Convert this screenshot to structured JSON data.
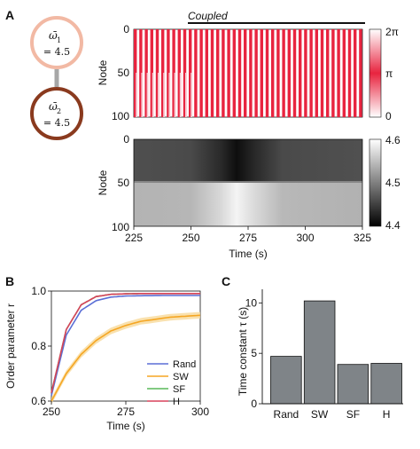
{
  "panels": {
    "a": "A",
    "b": "B",
    "c": "C"
  },
  "diagram": {
    "node1": {
      "symbol": "ω̄",
      "subscript": "1",
      "value": "= 4.5",
      "color": "#f2b9a4"
    },
    "node2": {
      "symbol": "ω̄",
      "subscript": "2",
      "value": "= 4.5",
      "color": "#8a3a1e"
    },
    "edge_color": "#a7a7a7"
  },
  "heatmap_top": {
    "annotation": "Coupled",
    "ylabel": "Node",
    "yticks": [
      "0",
      "50",
      "100"
    ],
    "colorbar_ticks": [
      "2π",
      "π",
      "0"
    ],
    "colors": {
      "high": "#e8243f",
      "low": "#ffffff"
    }
  },
  "heatmap_bottom": {
    "ylabel": "Node",
    "yticks": [
      "0",
      "50",
      "100"
    ],
    "colorbar_ticks": [
      "4.6",
      "4.5",
      "4.4"
    ]
  },
  "time_axis": {
    "xlabel": "Time (s)",
    "xticks": [
      "225",
      "250",
      "275",
      "300",
      "325"
    ]
  },
  "chart_data": [
    {
      "type": "heatmap",
      "description_value": "phase",
      "x": [
        225,
        325
      ],
      "y_range": [
        0,
        100
      ],
      "coupled_from": 250,
      "colorbar_range": [
        0,
        6.283
      ],
      "ylabel": "Node",
      "xlabel": "Time (s)"
    },
    {
      "type": "heatmap",
      "x": [
        225,
        325
      ],
      "y_range": [
        0,
        100
      ],
      "colorbar_range": [
        4.4,
        4.6
      ],
      "rows_0_50_min_at": 268,
      "rows_50_100_max_at": 268,
      "ylabel": "Node",
      "xlabel": "Time (s)"
    },
    {
      "type": "line",
      "xlabel": "Time (s)",
      "ylabel": "Order parameter r",
      "xlim": [
        250,
        300
      ],
      "ylim": [
        0.6,
        1.0
      ],
      "xticks": [
        "250",
        "275",
        "300"
      ],
      "yticks": [
        "1.0",
        "0.8",
        "0.6"
      ],
      "legend_position": "bottom-right",
      "series": [
        {
          "name": "Rand",
          "color": "#5b6fd6",
          "x": [
            250,
            255,
            260,
            265,
            270,
            275,
            280,
            290,
            300
          ],
          "values": [
            0.62,
            0.84,
            0.93,
            0.965,
            0.978,
            0.982,
            0.983,
            0.984,
            0.984
          ]
        },
        {
          "name": "SW",
          "color": "#f5a623",
          "x": [
            250,
            255,
            260,
            265,
            270,
            275,
            280,
            290,
            300
          ],
          "values": [
            0.6,
            0.7,
            0.77,
            0.82,
            0.855,
            0.875,
            0.89,
            0.905,
            0.912
          ]
        },
        {
          "name": "SF",
          "color": "#58b859",
          "x": [
            250,
            255,
            260,
            265,
            270,
            275,
            280,
            290,
            300
          ],
          "values": [
            0.63,
            0.86,
            0.95,
            0.98,
            0.988,
            0.99,
            0.991,
            0.991,
            0.991
          ]
        },
        {
          "name": "H",
          "color": "#d9425b",
          "x": [
            250,
            255,
            260,
            265,
            270,
            275,
            280,
            290,
            300
          ],
          "values": [
            0.63,
            0.86,
            0.95,
            0.98,
            0.988,
            0.99,
            0.991,
            0.991,
            0.991
          ]
        }
      ]
    },
    {
      "type": "bar",
      "ylabel": "Time constant τ (s)",
      "categories": [
        "Rand",
        "SW",
        "SF",
        "H"
      ],
      "values": [
        4.7,
        10.2,
        3.9,
        4.0
      ],
      "ylim": [
        0,
        11
      ],
      "yticks": [
        "0",
        "5",
        "10"
      ],
      "color": "#7f8488"
    }
  ]
}
